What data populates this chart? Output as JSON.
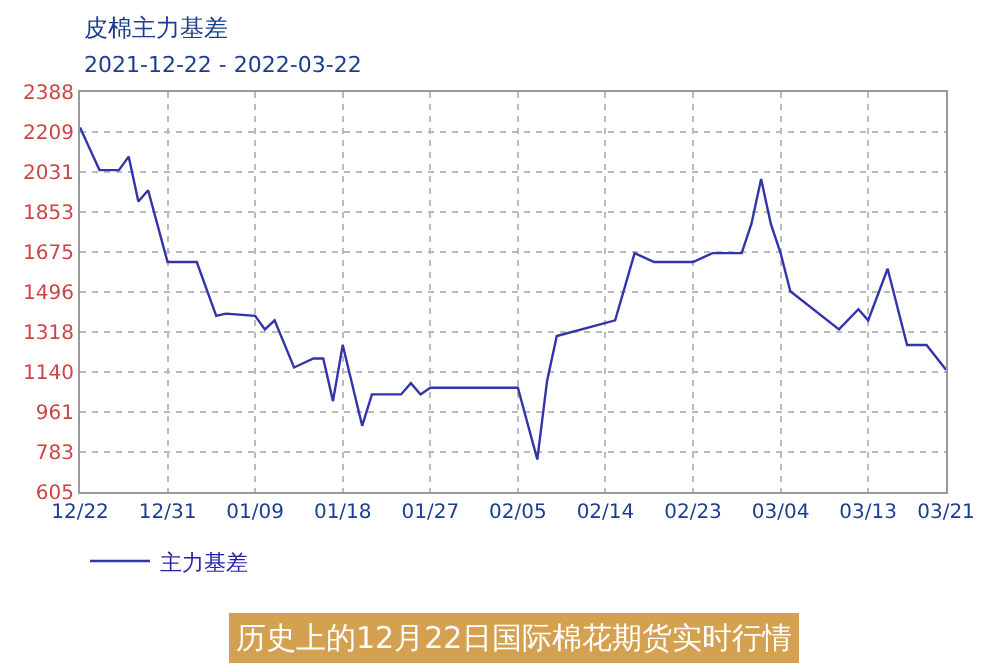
{
  "chart_data": {
    "type": "line",
    "title": "皮棉主力基差",
    "subtitle": "2021-12-22 - 2022-03-22",
    "annotations": [
      "历史上的12月22日国际棉花期货实时行情"
    ],
    "x": [
      "2021-12-22",
      "2021-12-24",
      "2021-12-26",
      "2021-12-27",
      "2021-12-28",
      "2021-12-29",
      "2021-12-31",
      "2022-01-03",
      "2022-01-05",
      "2022-01-06",
      "2022-01-09",
      "2022-01-10",
      "2022-01-11",
      "2022-01-13",
      "2022-01-15",
      "2022-01-16",
      "2022-01-17",
      "2022-01-18",
      "2022-01-20",
      "2022-01-21",
      "2022-01-24",
      "2022-01-25",
      "2022-01-26",
      "2022-01-27",
      "2022-01-30",
      "2022-02-05",
      "2022-02-07",
      "2022-02-08",
      "2022-02-09",
      "2022-02-15",
      "2022-02-17",
      "2022-02-19",
      "2022-02-23",
      "2022-02-25",
      "2022-02-28",
      "2022-03-01",
      "2022-03-02",
      "2022-03-03",
      "2022-03-04",
      "2022-03-05",
      "2022-03-10",
      "2022-03-12",
      "2022-03-13",
      "2022-03-15",
      "2022-03-17",
      "2022-03-19",
      "2022-03-21"
    ],
    "series": [
      {
        "name": "主力基差",
        "color": "#3333aa",
        "values": [
          2230,
          2040,
          2040,
          2100,
          1900,
          1950,
          1630,
          1630,
          1390,
          1400,
          1390,
          1330,
          1370,
          1160,
          1200,
          1200,
          1010,
          1260,
          900,
          1040,
          1040,
          1090,
          1040,
          1070,
          1070,
          1070,
          750,
          1100,
          1300,
          1370,
          1670,
          1630,
          1630,
          1670,
          1670,
          1800,
          2000,
          1800,
          1670,
          1500,
          1330,
          1420,
          1370,
          1600,
          1260,
          1260,
          1150
        ]
      }
    ],
    "xlim": [
      "2021-12-22",
      "2022-03-21"
    ],
    "xticks": [
      {
        "value": "2021-12-22",
        "label": "12/22"
      },
      {
        "value": "2021-12-31",
        "label": "12/31"
      },
      {
        "value": "2022-01-09",
        "label": "01/09"
      },
      {
        "value": "2022-01-18",
        "label": "01/18"
      },
      {
        "value": "2022-01-27",
        "label": "01/27"
      },
      {
        "value": "2022-02-05",
        "label": "02/05"
      },
      {
        "value": "2022-02-14",
        "label": "02/14"
      },
      {
        "value": "2022-02-23",
        "label": "02/23"
      },
      {
        "value": "2022-03-04",
        "label": "03/04"
      },
      {
        "value": "2022-03-13",
        "label": "03/13"
      },
      {
        "value": "2022-03-21",
        "label": "03/21"
      }
    ],
    "ylim": [
      605,
      2388
    ],
    "yticks": [
      605,
      783,
      961,
      1140,
      1318,
      1496,
      1675,
      1853,
      2031,
      2209,
      2388
    ],
    "grid": true,
    "legend": "bottom left",
    "marker": "none",
    "line_style": "solid"
  }
}
